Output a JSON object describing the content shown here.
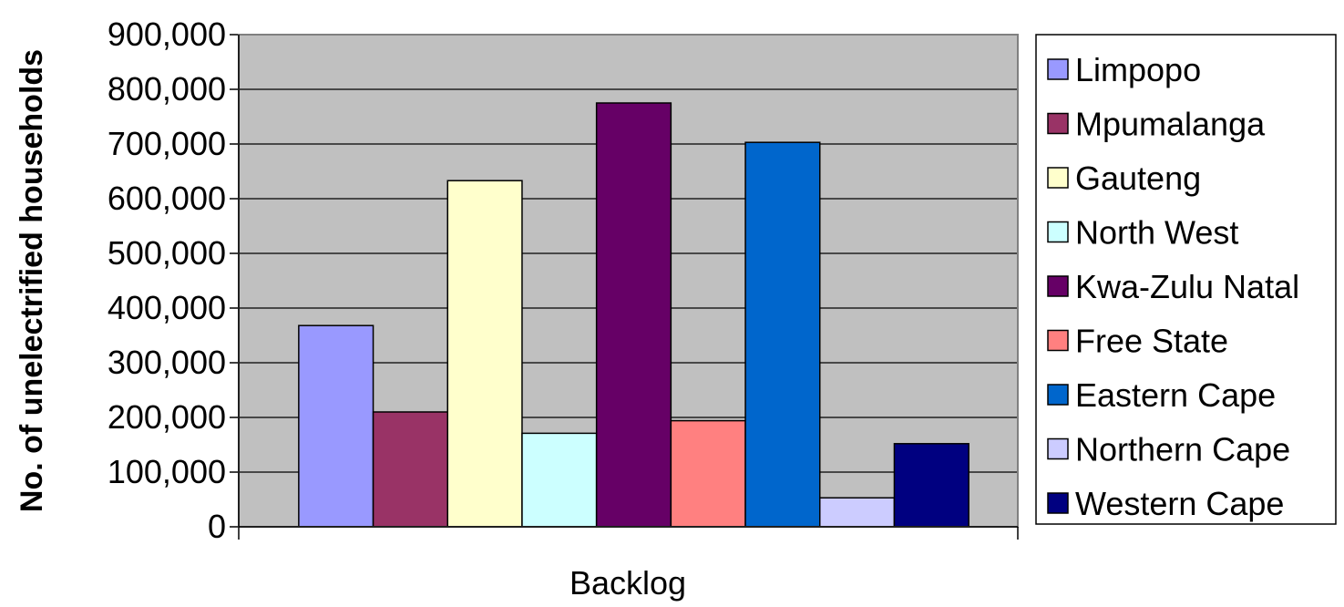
{
  "chart_data": {
    "type": "bar",
    "categories": [
      "Backlog"
    ],
    "series": [
      {
        "name": "Limpopo",
        "values": [
          368000
        ],
        "color": "#9999ff"
      },
      {
        "name": "Mpumalanga",
        "values": [
          210000
        ],
        "color": "#993366"
      },
      {
        "name": "Gauteng",
        "values": [
          633000
        ],
        "color": "#ffffcc"
      },
      {
        "name": "North West",
        "values": [
          171000
        ],
        "color": "#ccffff"
      },
      {
        "name": "Kwa-Zulu Natal",
        "values": [
          775000
        ],
        "color": "#660066"
      },
      {
        "name": "Free State",
        "values": [
          194000
        ],
        "color": "#ff8080"
      },
      {
        "name": "Eastern Cape",
        "values": [
          703000
        ],
        "color": "#0066cc"
      },
      {
        "name": "Northern Cape",
        "values": [
          53000
        ],
        "color": "#ccccff"
      },
      {
        "name": "Western Cape",
        "values": [
          152000
        ],
        "color": "#000080"
      }
    ],
    "title": "",
    "xlabel": "Backlog",
    "ylabel": "No. of unelectrified households",
    "ylim": [
      0,
      900000
    ],
    "yticks": [
      "0",
      "100,000",
      "200,000",
      "300,000",
      "400,000",
      "500,000",
      "600,000",
      "700,000",
      "800,000",
      "900,000"
    ],
    "grid": true,
    "legend_position": "right",
    "plot_background": "#c0c0c0"
  }
}
